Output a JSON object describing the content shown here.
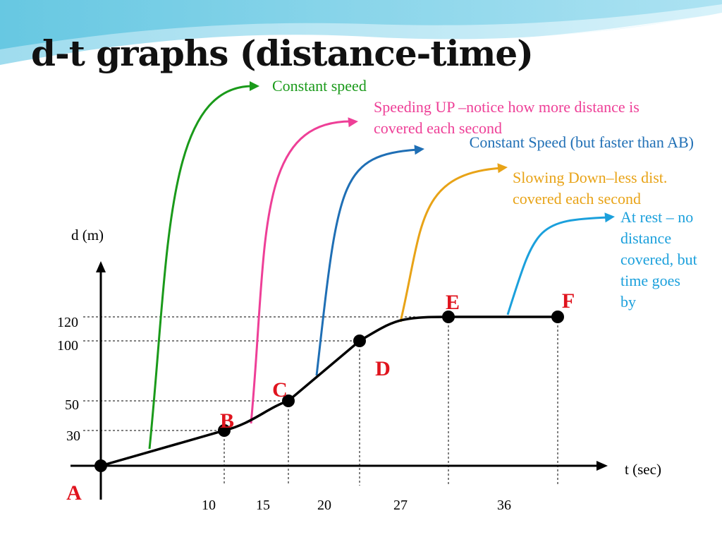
{
  "slide": {
    "title": "d-t graphs (distance-time)"
  },
  "annotations": [
    {
      "id": "constant",
      "text": "Constant speed",
      "color": "#1a9a1a"
    },
    {
      "id": "speeding",
      "text": "Speeding UP –notice how more distance is covered each second",
      "color": "#ee3f97"
    },
    {
      "id": "faster",
      "text": "Constant Speed (but faster than AB)",
      "color": "#1f6fb5"
    },
    {
      "id": "slowing",
      "text": "Slowing Down–less dist. covered each second",
      "color": "#e8a317"
    },
    {
      "id": "rest",
      "text": "At rest – no distance covered, but time goes by",
      "color": "#1ba0dc"
    }
  ],
  "chart_data": {
    "type": "line",
    "xlabel": "t (sec)",
    "ylabel": "d (m)",
    "x_ticks": [
      "10",
      "15",
      "20",
      "27",
      "36"
    ],
    "y_ticks": [
      "30",
      "50",
      "100",
      "120"
    ],
    "points": [
      {
        "label": "A",
        "t": 0,
        "d": 0
      },
      {
        "label": "B",
        "t": 10,
        "d": 30
      },
      {
        "label": "C",
        "t": 15,
        "d": 50
      },
      {
        "label": "D",
        "t": 20,
        "d": 100
      },
      {
        "label": "E",
        "t": 27,
        "d": 120
      },
      {
        "label": "F",
        "t": 36,
        "d": 120
      }
    ],
    "point_label_color": "#e0141e",
    "line_color": "#000000"
  }
}
